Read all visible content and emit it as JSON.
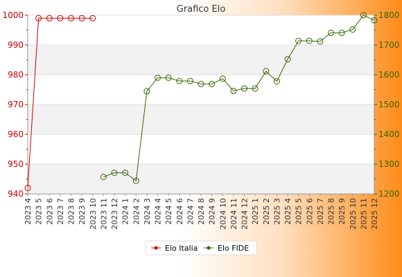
{
  "chart_data": {
    "type": "line",
    "title": "Grafico Elo",
    "categories": [
      "2023 4",
      "2023 5",
      "2023 6",
      "2023 7",
      "2023 8",
      "2023 9",
      "2023 10",
      "2023 11",
      "2023 12",
      "2024 1",
      "2024 2",
      "2024 3",
      "2024 4",
      "2024 5",
      "2024 6",
      "2024 7",
      "2024 8",
      "2024 9",
      "2024 10",
      "2024 11",
      "2024 12",
      "2025 1",
      "2025 2",
      "2025 3",
      "2025 4",
      "2025 5",
      "2025 6",
      "2025 7",
      "2025 8",
      "2025 9",
      "2025 10",
      "2025 11",
      "2025 12"
    ],
    "y_left": {
      "ticks": [
        "940",
        "950",
        "960",
        "970",
        "980",
        "990",
        "1000"
      ],
      "range": [
        940,
        1000
      ],
      "color": "#cc0000"
    },
    "y_right": {
      "ticks": [
        "1200",
        "1300",
        "1400",
        "1500",
        "1600",
        "1700",
        "1800"
      ],
      "range": [
        1200,
        1800
      ],
      "color": "#336600"
    },
    "grid": true,
    "legend_position": "bottom",
    "series": [
      {
        "name": "Elo Italia",
        "axis": "left",
        "color": "#cc0000",
        "values": [
          942,
          999,
          999,
          999,
          999,
          999,
          999,
          null,
          null,
          null,
          null,
          null,
          null,
          null,
          null,
          null,
          null,
          null,
          null,
          null,
          null,
          null,
          null,
          null,
          null,
          null,
          null,
          null,
          null,
          null,
          null,
          null,
          null
        ]
      },
      {
        "name": "Elo FIDE",
        "axis": "right",
        "color": "#336600",
        "values": [
          null,
          null,
          null,
          null,
          null,
          null,
          null,
          1257,
          1271,
          1271,
          1244,
          1545,
          1590,
          1590,
          1579,
          1579,
          1569,
          1569,
          1587,
          1546,
          1554,
          1554,
          1612,
          1578,
          1652,
          1714,
          1714,
          1712,
          1741,
          1741,
          1752,
          1800,
          1783
        ]
      }
    ]
  }
}
